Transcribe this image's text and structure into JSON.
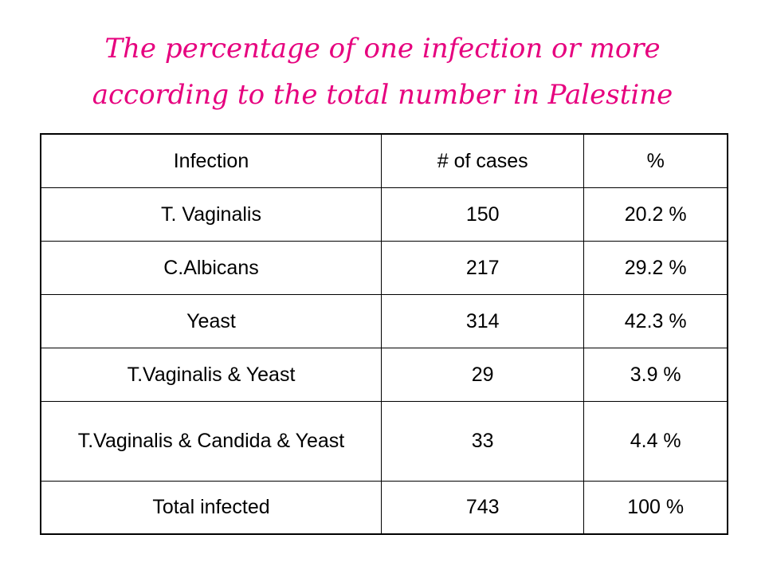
{
  "title": {
    "line1": "The percentage of one infection or more",
    "line2": "according to the total number in Palestine"
  },
  "table": {
    "headers": [
      "Infection",
      "# of cases",
      "%"
    ],
    "rows": [
      [
        "T. Vaginalis",
        "150",
        "20.2 %"
      ],
      [
        "C.Albicans",
        "217",
        "29.2 %"
      ],
      [
        "Yeast",
        "314",
        "42.3 %"
      ],
      [
        "T.Vaginalis & Yeast",
        "29",
        "3.9 %"
      ],
      [
        "T.Vaginalis & Candida & Yeast",
        "33",
        "4.4 %"
      ],
      [
        "Total infected",
        "743",
        "100 %"
      ]
    ]
  },
  "colors": {
    "title": "#e6007e",
    "text": "#000000",
    "background": "#ffffff"
  }
}
